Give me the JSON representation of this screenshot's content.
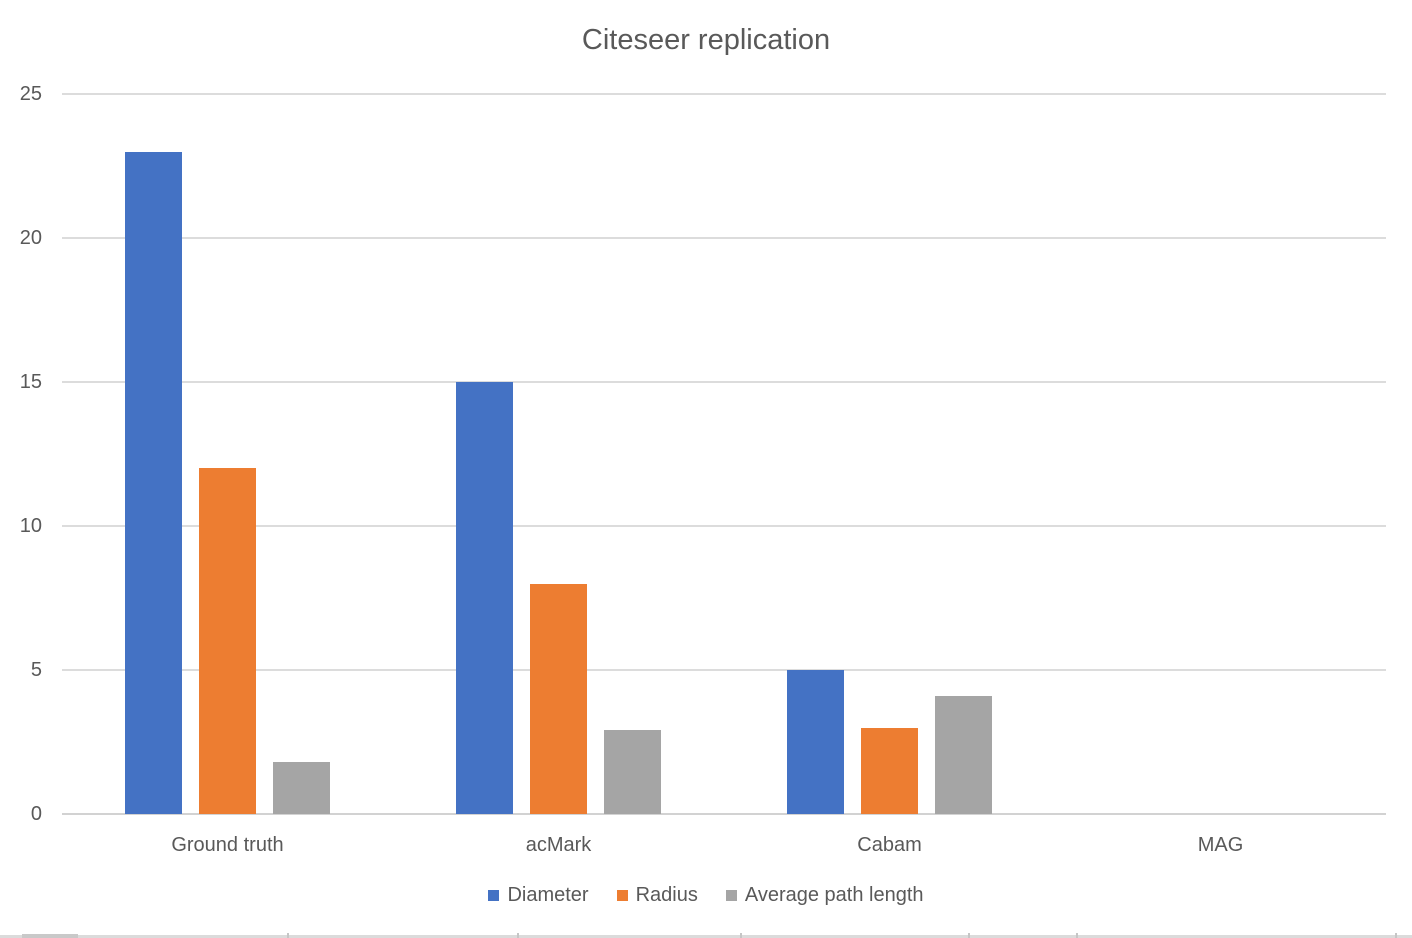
{
  "chart_data": {
    "type": "bar",
    "title": "Citeseer replication",
    "categories": [
      "Ground truth",
      "acMark",
      "Cabam",
      "MAG"
    ],
    "series": [
      {
        "name": "Diameter",
        "color": "#4472C4",
        "values": [
          23,
          15,
          5,
          0
        ]
      },
      {
        "name": "Radius",
        "color": "#ED7D31",
        "values": [
          12,
          8,
          3,
          0
        ]
      },
      {
        "name": "Average path length",
        "color": "#A5A5A5",
        "values": [
          1.8,
          2.9,
          4.1,
          0
        ]
      }
    ],
    "xlabel": "",
    "ylabel": "",
    "ylim": [
      0,
      25
    ],
    "yticks": [
      25,
      20,
      15,
      10,
      5,
      0
    ],
    "grid": true,
    "legend_position": "bottom"
  },
  "colors": {
    "title_text": "#595959",
    "axis_text": "#595959",
    "gridline": "#DCDCDC",
    "axis_line": "#D2D2D2",
    "worksheet_edge": "#DBDBDB"
  }
}
